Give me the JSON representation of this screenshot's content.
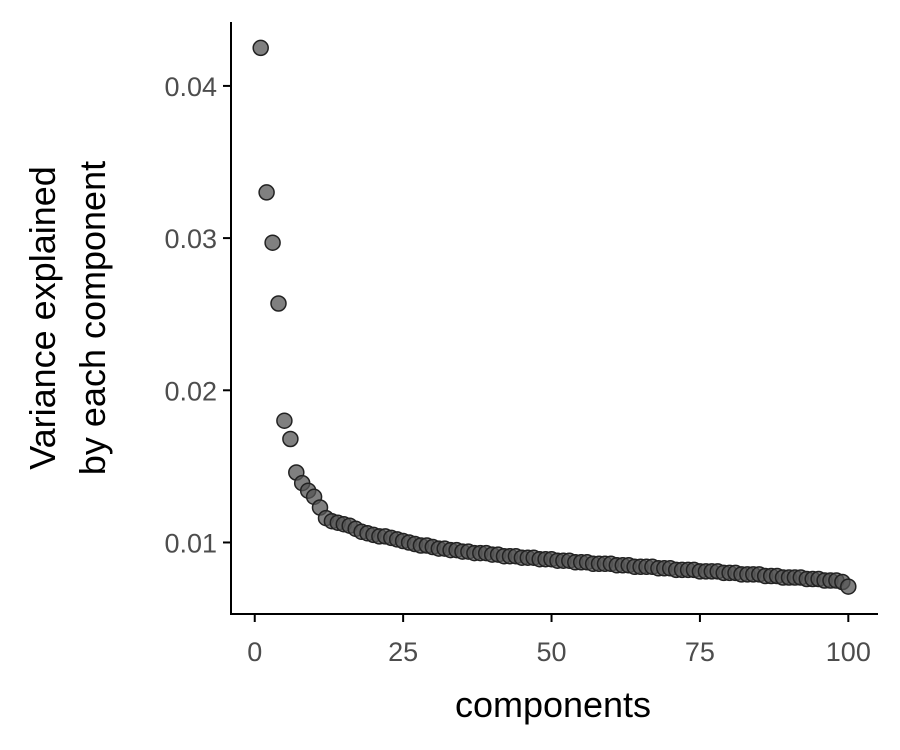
{
  "chart_data": {
    "type": "scatter",
    "xlabel": "components",
    "ylabel_lines": [
      "Variance explained",
      "by each component"
    ],
    "xlim": [
      -4,
      105
    ],
    "ylim": [
      0.0053,
      0.0442
    ],
    "xticks": [
      0,
      25,
      50,
      75,
      100
    ],
    "xtick_labels": [
      "0",
      "25",
      "50",
      "75",
      "100"
    ],
    "yticks": [
      0.01,
      0.02,
      0.03,
      0.04
    ],
    "ytick_labels": [
      "0.01",
      "0.02",
      "0.03",
      "0.04"
    ],
    "grid": false,
    "point_color": "#555555",
    "point_edge_color": "#222222",
    "series": [
      {
        "x": [
          1,
          2,
          3,
          4,
          5,
          6,
          7,
          8,
          9,
          10,
          11,
          12,
          13,
          14,
          15,
          16,
          17,
          18,
          19,
          20,
          21,
          22,
          23,
          24,
          25,
          26,
          27,
          28,
          29,
          30,
          31,
          32,
          33,
          34,
          35,
          36,
          37,
          38,
          39,
          40,
          41,
          42,
          43,
          44,
          45,
          46,
          47,
          48,
          49,
          50,
          51,
          52,
          53,
          54,
          55,
          56,
          57,
          58,
          59,
          60,
          61,
          62,
          63,
          64,
          65,
          66,
          67,
          68,
          69,
          70,
          71,
          72,
          73,
          74,
          75,
          76,
          77,
          78,
          79,
          80,
          81,
          82,
          83,
          84,
          85,
          86,
          87,
          88,
          89,
          90,
          91,
          92,
          93,
          94,
          95,
          96,
          97,
          98,
          99,
          100
        ],
        "y": [
          0.0425,
          0.033,
          0.0297,
          0.0257,
          0.018,
          0.0168,
          0.0146,
          0.0139,
          0.0134,
          0.013,
          0.0123,
          0.0116,
          0.0114,
          0.0113,
          0.0112,
          0.0111,
          0.0109,
          0.0107,
          0.0106,
          0.0105,
          0.0104,
          0.0104,
          0.0103,
          0.0102,
          0.0101,
          0.01,
          0.0099,
          0.0098,
          0.0098,
          0.0097,
          0.0096,
          0.0096,
          0.0095,
          0.0095,
          0.0094,
          0.0094,
          0.0093,
          0.0093,
          0.0093,
          0.0092,
          0.0092,
          0.0091,
          0.0091,
          0.0091,
          0.009,
          0.009,
          0.009,
          0.0089,
          0.0089,
          0.0089,
          0.0088,
          0.0088,
          0.0088,
          0.0087,
          0.0087,
          0.0087,
          0.0086,
          0.0086,
          0.0086,
          0.0086,
          0.0085,
          0.0085,
          0.0085,
          0.0084,
          0.0084,
          0.0084,
          0.0084,
          0.0083,
          0.0083,
          0.0083,
          0.0082,
          0.0082,
          0.0082,
          0.0082,
          0.0081,
          0.0081,
          0.0081,
          0.0081,
          0.008,
          0.008,
          0.008,
          0.0079,
          0.0079,
          0.0079,
          0.0079,
          0.0078,
          0.0078,
          0.0078,
          0.0077,
          0.0077,
          0.0077,
          0.0077,
          0.0076,
          0.0076,
          0.0076,
          0.0075,
          0.0075,
          0.0075,
          0.0074,
          0.0071
        ]
      }
    ]
  }
}
